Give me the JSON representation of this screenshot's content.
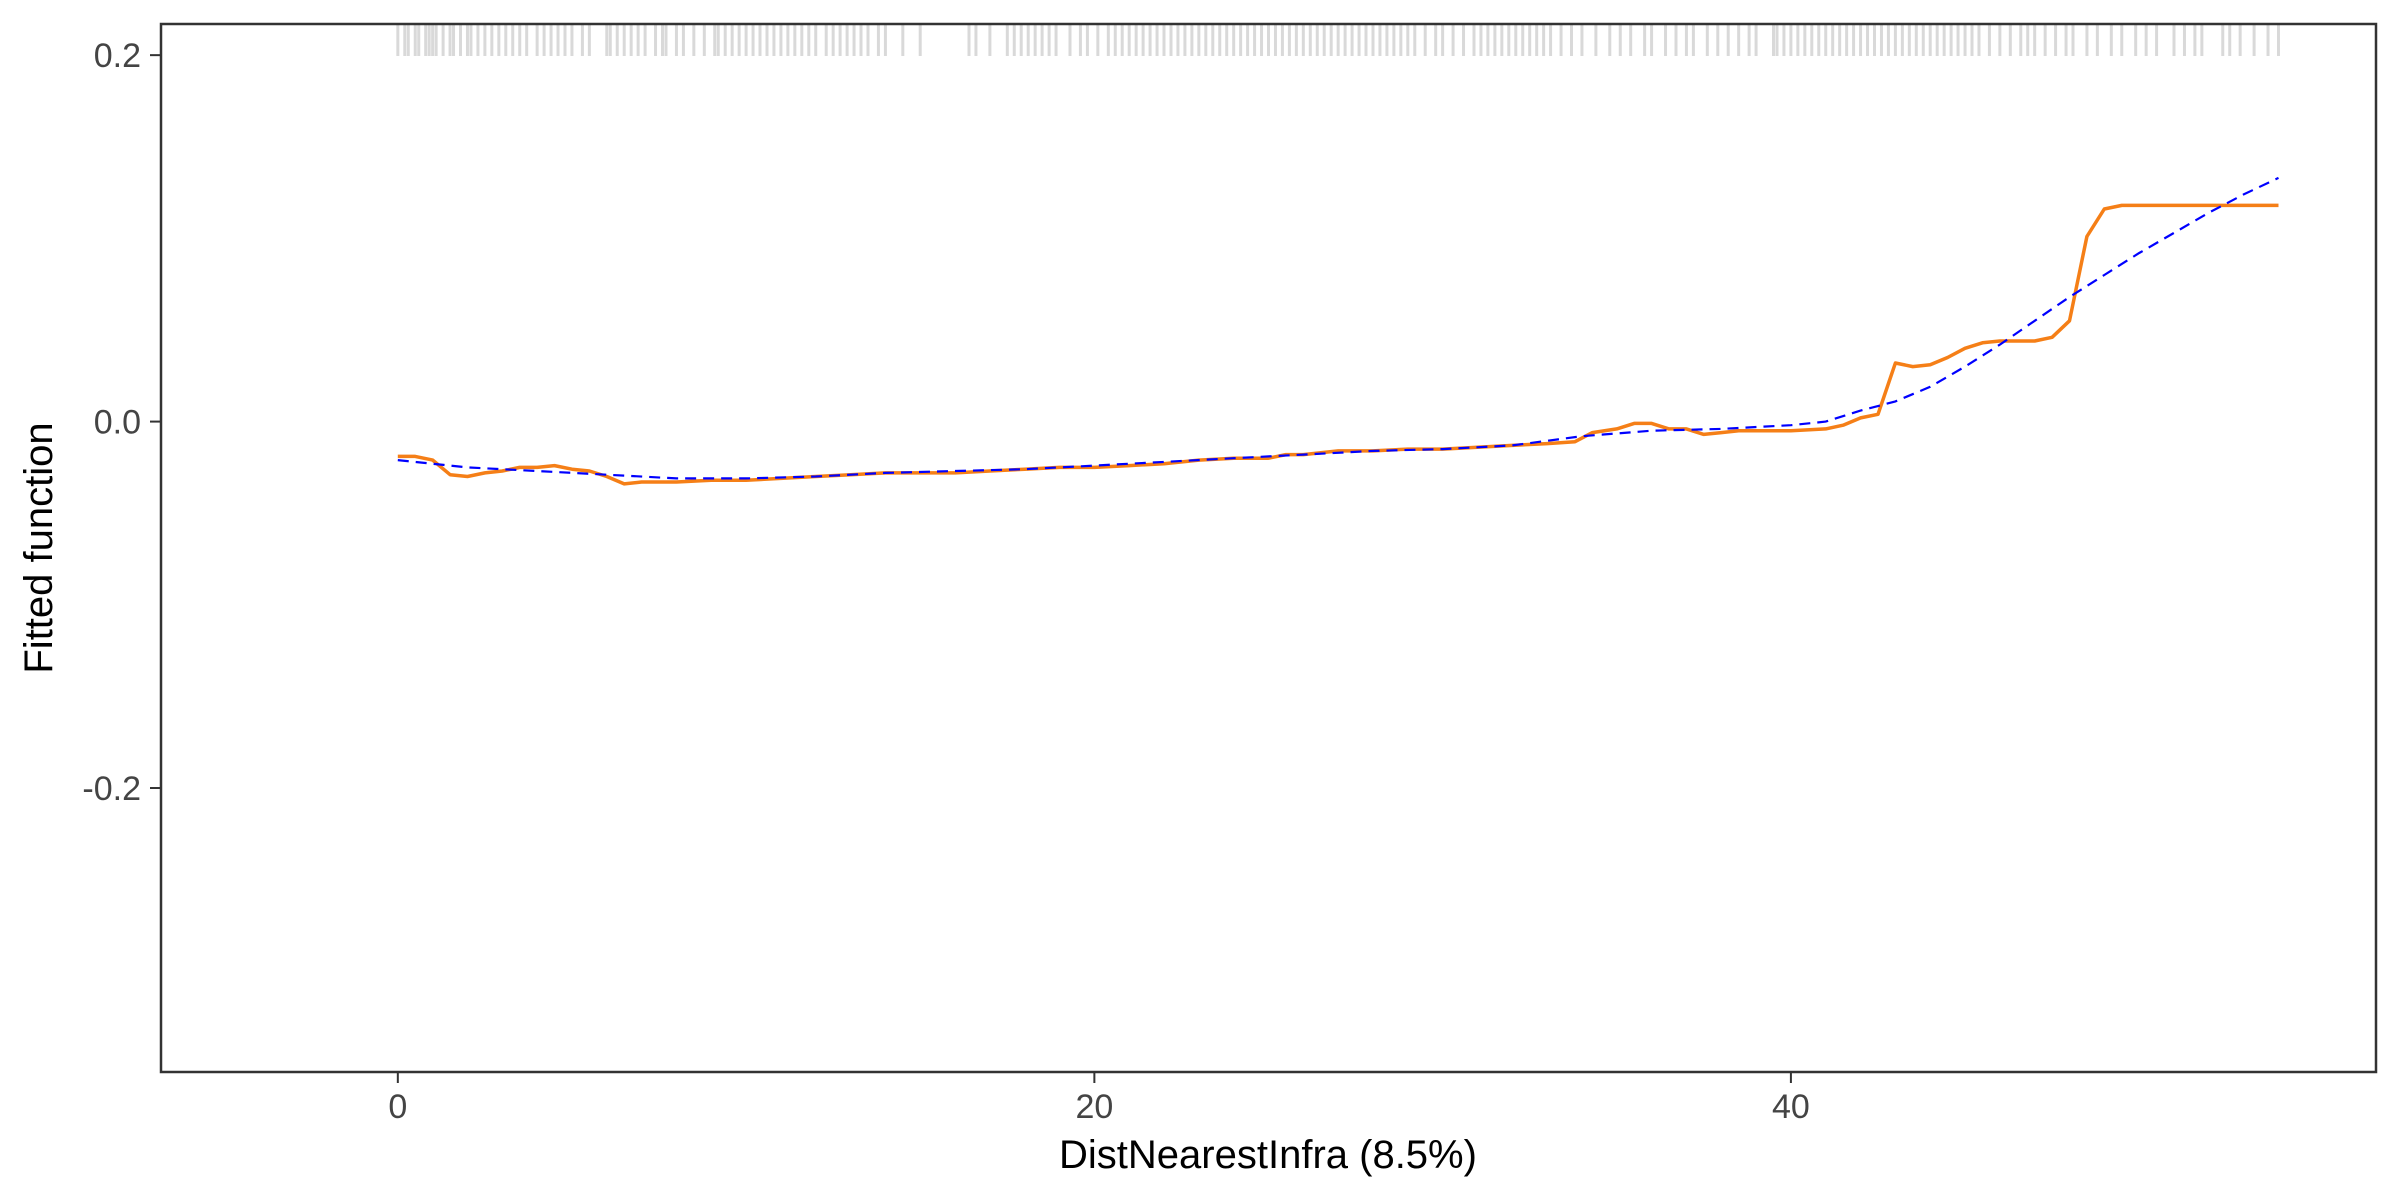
{
  "chart_data": {
    "type": "line",
    "xlabel": "DistNearestInfra  (8.5%)",
    "ylabel": "Fitted function",
    "xlim": [
      -6.8,
      56.8
    ],
    "ylim": [
      -0.355,
      0.217
    ],
    "x_ticks": [
      0,
      20,
      40
    ],
    "x_tick_labels": [
      "0",
      "20",
      "40"
    ],
    "y_ticks": [
      0.2,
      0.0,
      -0.2
    ],
    "y_tick_labels": [
      "0.2",
      "0.0",
      "-0.2"
    ],
    "grid": false,
    "colors": {
      "fitted": "#f57f17",
      "smooth": "#0000ff",
      "rug": "#d9d9d9",
      "axis": "#333333"
    },
    "series": [
      {
        "style": "solid",
        "x": [
          0,
          0.5,
          1.0,
          1.5,
          2.0,
          2.5,
          3.0,
          3.5,
          4.0,
          4.5,
          5.0,
          5.5,
          6.0,
          6.5,
          7.0,
          7.5,
          8.0,
          9.0,
          10.0,
          11.0,
          12.0,
          13.0,
          14.0,
          15.0,
          16.0,
          17.0,
          18.0,
          19.0,
          20.0,
          21.0,
          22.0,
          23.0,
          24.0,
          25.0,
          25.5,
          26.0,
          27.0,
          28.0,
          29.0,
          30.0,
          31.0,
          32.0,
          33.0,
          33.8,
          34.3,
          35.0,
          35.5,
          36.0,
          36.5,
          37.0,
          37.5,
          38.0,
          38.5,
          39.0,
          40.0,
          41.0,
          41.5,
          42.0,
          42.5,
          43.0,
          43.5,
          44.0,
          44.5,
          45.0,
          45.5,
          46.0,
          46.5,
          47.0,
          47.5,
          48.0,
          48.5,
          49.0,
          49.5,
          50.0,
          50.5,
          51.0,
          52.0,
          53.0,
          54.0
        ],
        "y": [
          -0.019,
          -0.019,
          -0.021,
          -0.029,
          -0.03,
          -0.028,
          -0.027,
          -0.025,
          -0.025,
          -0.024,
          -0.026,
          -0.027,
          -0.03,
          -0.034,
          -0.033,
          -0.033,
          -0.033,
          -0.032,
          -0.032,
          -0.031,
          -0.03,
          -0.029,
          -0.028,
          -0.028,
          -0.028,
          -0.027,
          -0.026,
          -0.025,
          -0.025,
          -0.024,
          -0.023,
          -0.021,
          -0.02,
          -0.02,
          -0.018,
          -0.018,
          -0.016,
          -0.016,
          -0.015,
          -0.015,
          -0.014,
          -0.013,
          -0.012,
          -0.011,
          -0.006,
          -0.004,
          -0.001,
          -0.001,
          -0.004,
          -0.004,
          -0.007,
          -0.006,
          -0.005,
          -0.005,
          -0.005,
          -0.004,
          -0.002,
          0.002,
          0.004,
          0.032,
          0.03,
          0.031,
          0.035,
          0.04,
          0.043,
          0.044,
          0.044,
          0.044,
          0.046,
          0.055,
          0.101,
          0.116,
          0.118,
          0.118,
          0.118,
          0.118,
          0.118,
          0.118,
          0.118
        ]
      },
      {
        "style": "dashed",
        "x": [
          0,
          2,
          4,
          6,
          8,
          10,
          12,
          14,
          16,
          18,
          20,
          22,
          24,
          26,
          28,
          30,
          32,
          34,
          36,
          38,
          40,
          41,
          42,
          43,
          44,
          45,
          46,
          47,
          48,
          49,
          50,
          51,
          52,
          53,
          54
        ],
        "y": [
          -0.021,
          -0.025,
          -0.027,
          -0.029,
          -0.031,
          -0.031,
          -0.03,
          -0.028,
          -0.027,
          -0.026,
          -0.024,
          -0.022,
          -0.02,
          -0.018,
          -0.016,
          -0.015,
          -0.013,
          -0.008,
          -0.005,
          -0.004,
          -0.002,
          0.0,
          0.006,
          0.011,
          0.019,
          0.03,
          0.042,
          0.055,
          0.068,
          0.08,
          0.092,
          0.103,
          0.114,
          0.124,
          0.133
        ]
      }
    ],
    "rug": [
      0,
      0.2,
      0.3,
      0.5,
      0.6,
      0.8,
      0.9,
      1.0,
      1.1,
      1.3,
      1.5,
      1.6,
      1.8,
      2.0,
      2.1,
      2.3,
      2.5,
      2.7,
      2.9,
      3.1,
      3.3,
      3.5,
      3.7,
      4.0,
      4.2,
      4.4,
      4.6,
      4.8,
      5.0,
      5.3,
      5.5,
      6.0,
      6.1,
      6.3,
      6.5,
      6.7,
      6.9,
      7.1,
      7.4,
      7.6,
      7.7,
      8.0,
      8.2,
      8.5,
      8.8,
      9.1,
      9.2,
      9.4,
      9.6,
      9.8,
      10.0,
      10.2,
      10.4,
      10.6,
      10.8,
      11.0,
      11.2,
      11.4,
      11.6,
      11.8,
      12.0,
      12.3,
      12.5,
      12.7,
      12.9,
      13.1,
      13.3,
      13.5,
      13.8,
      14.0,
      14.5,
      15.0,
      16.4,
      16.6,
      17.0,
      17.5,
      17.7,
      17.9,
      18.1,
      18.3,
      18.5,
      18.7,
      18.9,
      19.3,
      19.6,
      19.8,
      20.1,
      20.4,
      20.6,
      20.8,
      21.0,
      21.2,
      21.4,
      21.6,
      21.8,
      22.0,
      22.2,
      22.4,
      22.6,
      22.8,
      23.0,
      23.2,
      23.4,
      23.6,
      23.8,
      24.0,
      24.2,
      24.4,
      24.6,
      24.8,
      25.0,
      25.2,
      25.4,
      25.6,
      25.8,
      26.0,
      26.2,
      26.4,
      26.6,
      26.8,
      27.0,
      27.2,
      27.4,
      27.6,
      27.8,
      28.0,
      28.2,
      28.4,
      28.6,
      28.8,
      29.0,
      29.2,
      29.5,
      29.8,
      30.0,
      30.3,
      30.6,
      30.9,
      31.1,
      31.3,
      31.5,
      31.7,
      31.9,
      32.1,
      32.3,
      32.5,
      32.7,
      32.9,
      33.1,
      33.4,
      33.7,
      34.0,
      34.4,
      34.8,
      35.1,
      35.4,
      35.8,
      36.0,
      36.4,
      36.7,
      37.0,
      37.2,
      37.6,
      37.9,
      38.2,
      38.5,
      38.8,
      39.0,
      39.5,
      39.6,
      39.8,
      40.0,
      40.2,
      40.4,
      40.6,
      40.8,
      41.0,
      41.2,
      41.4,
      41.6,
      41.8,
      42.0,
      42.2,
      42.4,
      42.6,
      42.8,
      43.0,
      43.2,
      43.4,
      43.6,
      43.8,
      44.0,
      44.2,
      44.4,
      44.6,
      44.8,
      45.0,
      45.2,
      45.4,
      45.7,
      46.0,
      46.3,
      46.6,
      46.8,
      47.0,
      47.3,
      47.6,
      47.9,
      48.1,
      48.5,
      48.8,
      49.2,
      49.5,
      49.9,
      50.2,
      50.5,
      51.0,
      51.3,
      51.6,
      51.8,
      52.4,
      52.6,
      52.9,
      53.3,
      53.7,
      54.0
    ]
  }
}
